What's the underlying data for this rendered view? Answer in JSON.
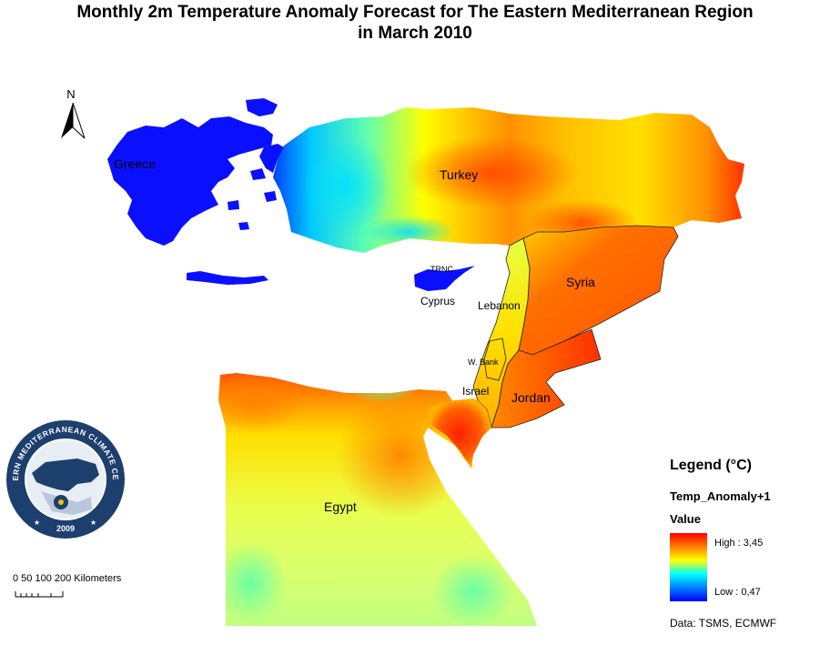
{
  "title": {
    "line1": "Monthly 2m Temperature Anomaly Forecast for  The Eastern Mediterranean Region",
    "line2": "in March 2010"
  },
  "north_arrow": {
    "label": "N"
  },
  "map_labels": {
    "greece": "Greece",
    "turkey": "Turkey",
    "trnc": "TRNC",
    "cyprus": "Cyprus",
    "syria": "Syria",
    "lebanon": "Lebanon",
    "west_bank": "W. Bank",
    "israel": "Israel",
    "jordan": "Jordan",
    "egypt": "Egypt"
  },
  "legend": {
    "title": "Legend (°C)",
    "field": "Temp_Anomaly+1",
    "value_label": "Value",
    "high_label": "High : 3,45",
    "low_label": "Low : 0,47",
    "high_value": 3.45,
    "low_value": 0.47,
    "colors": [
      "#ff0000",
      "#ff8000",
      "#ffff00",
      "#00ffff",
      "#0080ff",
      "#0000ff"
    ]
  },
  "credits": "Data:  TSMS, ECMWF",
  "scale": {
    "label": "0 50 100      200 Kilometers"
  },
  "logo": {
    "text": "EASTERN MEDITERRANEAN CLIMATE CENTRE",
    "year": "2009"
  }
}
